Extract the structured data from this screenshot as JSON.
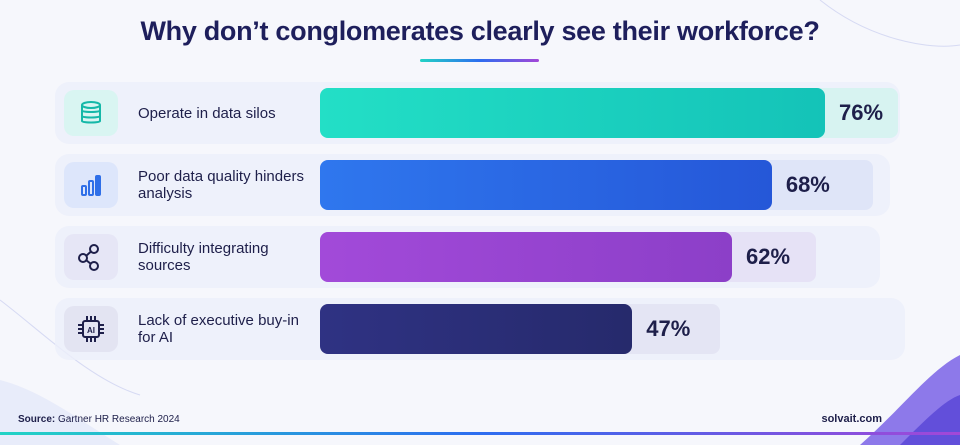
{
  "title": "Why don’t conglomerates clearly see their workforce?",
  "chart_data": {
    "type": "bar",
    "orientation": "horizontal",
    "categories": [
      "Operate in data silos",
      "Poor data quality hinders analysis",
      "Difficulty integrating sources",
      "Lack of executive buy-in for AI"
    ],
    "values": [
      76,
      68,
      62,
      47
    ],
    "value_labels": [
      "76%",
      "68%",
      "62%",
      "47%"
    ],
    "xlim": [
      0,
      100
    ],
    "colors": [
      "#1ed8c0",
      "#2f6fe8",
      "#9e45d6",
      "#2c2f78"
    ],
    "icons": [
      "database-icon",
      "bar-chart-icon",
      "network-icon",
      "ai-chip-icon"
    ]
  },
  "footer": {
    "source_label": "Source:",
    "source_text": "Gartner HR Research 2024",
    "site": "solvait.com"
  }
}
